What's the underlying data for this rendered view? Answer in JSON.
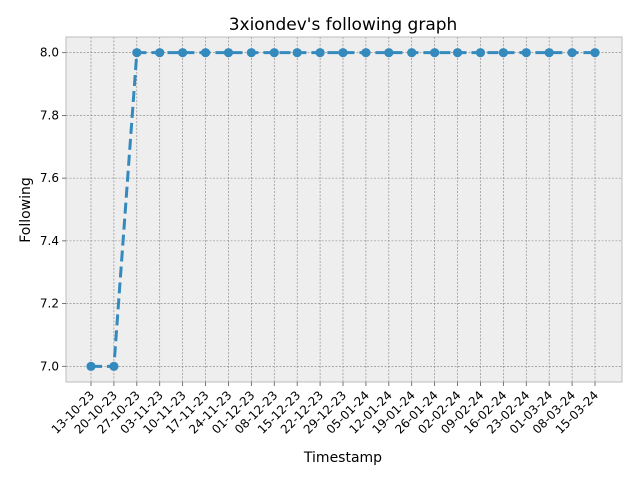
{
  "chart_data": {
    "type": "line",
    "title": "3xiondev's following graph",
    "xlabel": "Timestamp",
    "ylabel": "Following",
    "x": [
      "13-10-23",
      "20-10-23",
      "27-10-23",
      "03-11-23",
      "10-11-23",
      "17-11-23",
      "24-11-23",
      "01-12-23",
      "08-12-23",
      "15-12-23",
      "22-12-23",
      "29-12-23",
      "05-01-24",
      "12-01-24",
      "19-01-24",
      "26-01-24",
      "02-02-24",
      "09-02-24",
      "16-02-24",
      "23-02-24",
      "01-03-24",
      "08-03-24",
      "15-03-24"
    ],
    "series": [
      {
        "values": [
          7,
          7,
          8,
          8,
          8,
          8,
          8,
          8,
          8,
          8,
          8,
          8,
          8,
          8,
          8,
          8,
          8,
          8,
          8,
          8,
          8,
          8,
          8
        ]
      }
    ],
    "ylim": [
      6.95,
      8.05
    ],
    "yticks": [
      7.0,
      7.2,
      7.4,
      7.6,
      7.8,
      8.0
    ],
    "ytick_labels": [
      "7.0",
      "7.2",
      "7.4",
      "7.6",
      "7.8",
      "8.0"
    ],
    "line_style": "dashed",
    "marker": "circle",
    "grid": true,
    "colors": {
      "series": "#348abd",
      "plot_background": "#eeeeee",
      "grid": "#7f7f7f",
      "frame": "#bcbcbc"
    }
  }
}
